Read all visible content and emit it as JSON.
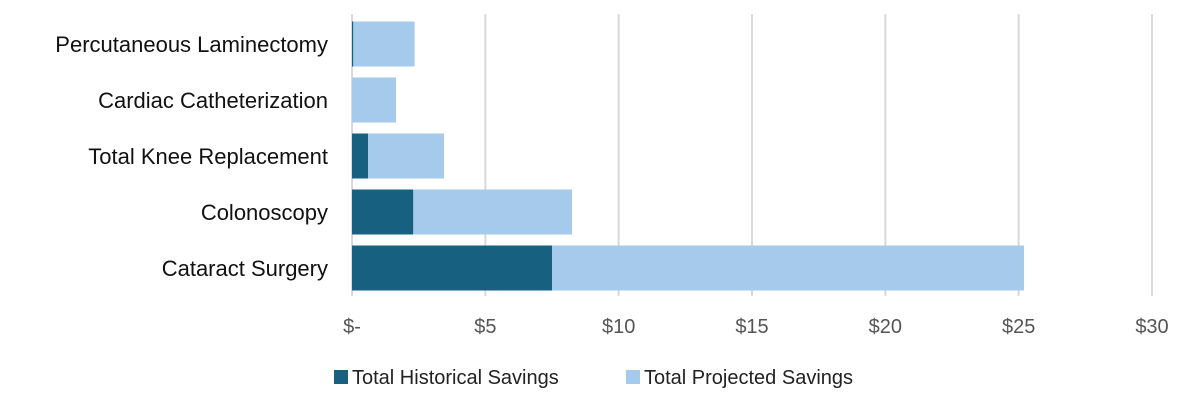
{
  "chart_data": {
    "type": "bar",
    "orientation": "horizontal",
    "stacked": true,
    "categories": [
      "Percutaneous Laminectomy",
      "Cardiac Catheterization",
      "Total Knee Replacement",
      "Colonoscopy",
      "Cataract Surgery"
    ],
    "series": [
      {
        "name": "Total Historical Savings",
        "color": "#17607f",
        "values": [
          0.05,
          0,
          0.6,
          2.3,
          7.5
        ]
      },
      {
        "name": "Total Projected Savings",
        "color": "#a6caec",
        "values": [
          2.3,
          1.65,
          2.85,
          5.95,
          17.7
        ]
      }
    ],
    "xlim": [
      0,
      30
    ],
    "x_ticks": [
      0,
      5,
      10,
      15,
      20,
      25,
      30
    ],
    "x_tick_labels": [
      "$-",
      "$5",
      "$10",
      "$15",
      "$20",
      "$25",
      "$30"
    ],
    "gridlines": "vertical",
    "legend_position": "bottom",
    "grid_color": "#d9d9d9",
    "title": "",
    "xlabel": "",
    "ylabel": ""
  }
}
